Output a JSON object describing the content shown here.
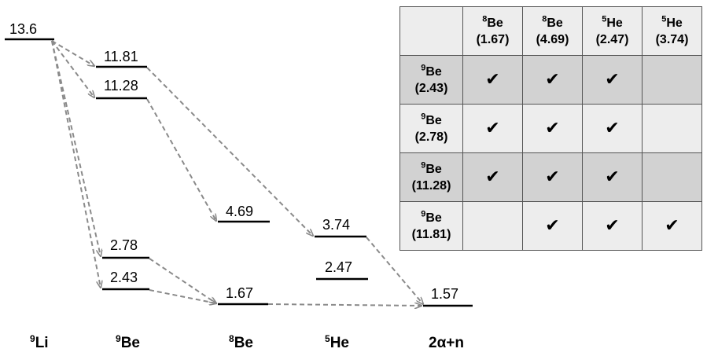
{
  "levels": {
    "li9": [
      "13.6"
    ],
    "be9": [
      "11.81",
      "11.28",
      "2.78",
      "2.43"
    ],
    "be8": [
      "4.69",
      "1.67"
    ],
    "he5": [
      "3.74",
      "2.47"
    ],
    "final": [
      "1.57"
    ]
  },
  "nuclei": [
    {
      "mass": "9",
      "sym": "Li"
    },
    {
      "mass": "9",
      "sym": "Be"
    },
    {
      "mass": "8",
      "sym": "Be"
    },
    {
      "mass": "5",
      "sym": "He"
    },
    {
      "mass": "",
      "sym": "2α+n"
    }
  ],
  "table": {
    "columns": [
      {
        "mass": "8",
        "sym": "Be",
        "energy": "(1.67)"
      },
      {
        "mass": "8",
        "sym": "Be",
        "energy": "(4.69)"
      },
      {
        "mass": "5",
        "sym": "He",
        "energy": "(2.47)"
      },
      {
        "mass": "5",
        "sym": "He",
        "energy": "(3.74)"
      }
    ],
    "rows": [
      {
        "mass": "9",
        "sym": "Be",
        "energy": "(2.43)",
        "cells": [
          "✔",
          "✔",
          "✔",
          ""
        ]
      },
      {
        "mass": "9",
        "sym": "Be",
        "energy": "(2.78)",
        "cells": [
          "✔",
          "✔",
          "✔",
          ""
        ]
      },
      {
        "mass": "9",
        "sym": "Be",
        "energy": "(11.28)",
        "cells": [
          "✔",
          "✔",
          "✔",
          ""
        ]
      },
      {
        "mass": "9",
        "sym": "Be",
        "energy": "(11.81)",
        "cells": [
          "",
          "✔",
          "✔",
          "✔"
        ]
      }
    ]
  }
}
